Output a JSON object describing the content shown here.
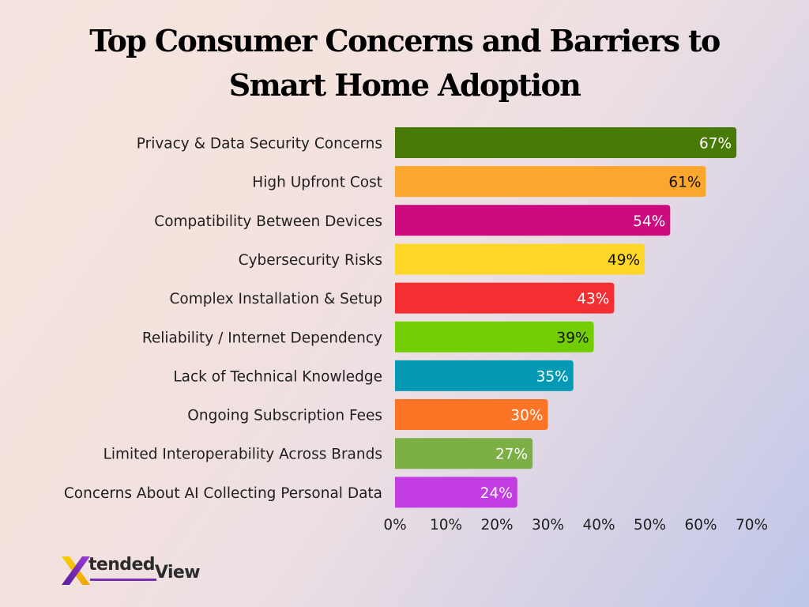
{
  "title": "Top Consumer Concerns and Barriers to Smart Home Adoption",
  "logo": {
    "name_part1": "tended",
    "name_part2": "View",
    "mark_letter": "X"
  },
  "chart_data": {
    "type": "bar",
    "orientation": "horizontal",
    "title": "Top Consumer Concerns and Barriers to Smart Home Adoption",
    "categories": [
      "Privacy & Data Security Concerns",
      "High Upfront Cost",
      "Compatibility Between Devices",
      "Cybersecurity Risks",
      "Complex Installation & Setup",
      "Reliability / Internet Dependency",
      "Lack of Technical Knowledge",
      "Ongoing Subscription Fees",
      "Limited Interoperability Across Brands",
      "Concerns About AI Collecting Personal Data"
    ],
    "values": [
      67,
      61,
      54,
      49,
      43,
      39,
      35,
      30,
      27,
      24
    ],
    "value_labels": [
      "67%",
      "61%",
      "54%",
      "49%",
      "43%",
      "39%",
      "35%",
      "30%",
      "27%",
      "24%"
    ],
    "colors": [
      "#477a06",
      "#fba62c",
      "#cc0b7e",
      "#fdd626",
      "#f42f31",
      "#73cd03",
      "#049ab6",
      "#fd7427",
      "#7daf47",
      "#c23ee2"
    ],
    "label_colors": [
      "#ffffff",
      "#111111",
      "#ffffff",
      "#111111",
      "#ffffff",
      "#111111",
      "#ffffff",
      "#ffffff",
      "#ffffff",
      "#ffffff"
    ],
    "xlim": [
      0,
      70
    ],
    "x_ticks": [
      0,
      10,
      20,
      30,
      40,
      50,
      60,
      70
    ],
    "x_tick_labels": [
      "0%",
      "10%",
      "20%",
      "30%",
      "40%",
      "50%",
      "60%",
      "70%"
    ],
    "xlabel": "",
    "ylabel": "",
    "grid": false,
    "legend": "none"
  }
}
